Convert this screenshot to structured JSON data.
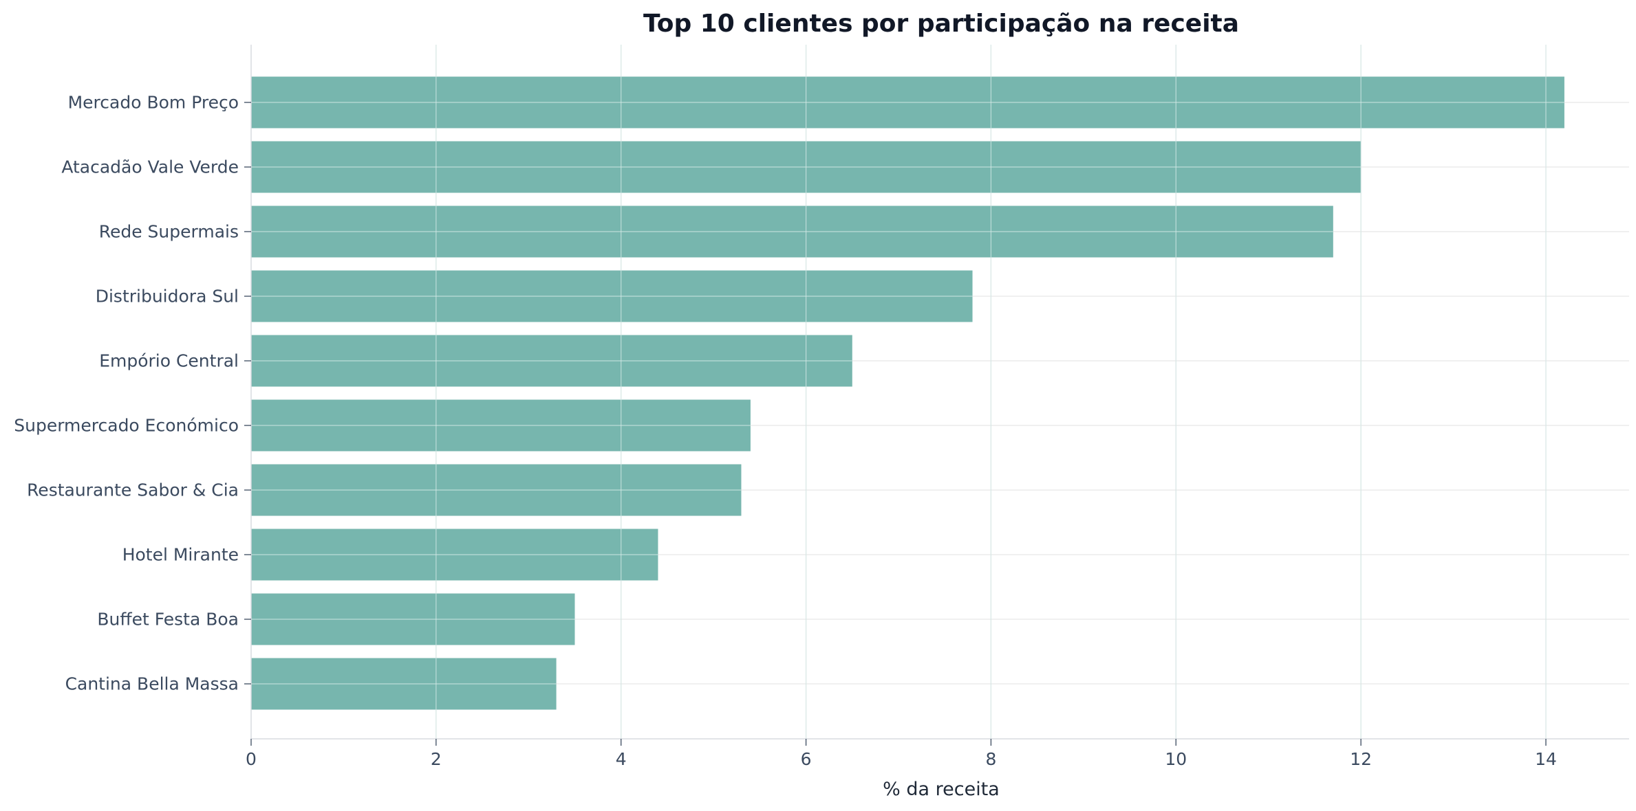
{
  "chart_data": {
    "type": "bar",
    "orientation": "horizontal",
    "title": "Top 10 clientes por participação na receita",
    "xlabel": "% da receita",
    "ylabel": "",
    "categories": [
      "Mercado Bom Preço",
      "Atacadão Vale Verde",
      "Rede Supermais",
      "Distribuidora Sul",
      "Empório Central",
      "Supermercado Económico",
      "Restaurante Sabor & Cia",
      "Hotel Mirante",
      "Buffet Festa Boa",
      "Cantina Bella Massa"
    ],
    "values": [
      14.2,
      12.0,
      11.7,
      7.8,
      6.5,
      5.4,
      5.3,
      4.4,
      3.5,
      3.3
    ],
    "xlim": [
      0,
      14.9
    ],
    "xticks": [
      "0",
      "2",
      "4",
      "6",
      "8",
      "10",
      "12",
      "14"
    ],
    "grid": true,
    "legend": "none",
    "colors": {
      "bar": "#77b6ae",
      "grid": "#e6e6e6",
      "gridOverBar": "#d4e9e6",
      "axis": "#d9dce1",
      "tick": "#3b4a5f",
      "title": "#111827"
    }
  }
}
